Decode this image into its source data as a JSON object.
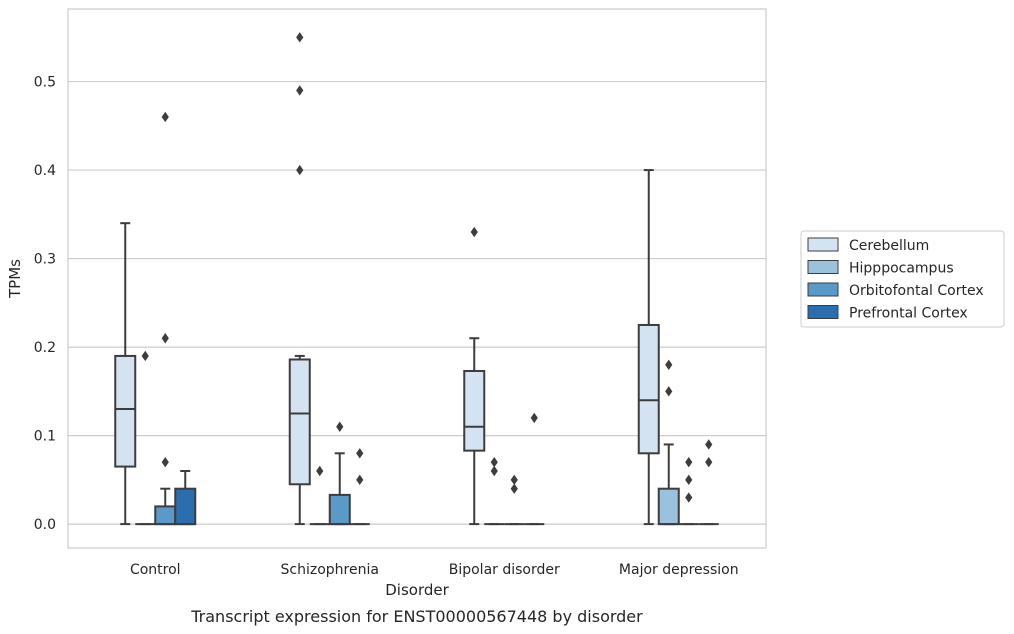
{
  "caption": "Transcript expression for ENST00000567448 by disorder",
  "chart_data": {
    "type": "boxplot",
    "xlabel": "Disorder",
    "ylabel": "TPMs",
    "ylim": [
      -0.027,
      0.582
    ],
    "yticks": [
      0.0,
      0.1,
      0.2,
      0.3,
      0.4,
      0.5
    ],
    "ytick_labels": [
      "0.0",
      "0.1",
      "0.2",
      "0.3",
      "0.4",
      "0.5"
    ],
    "grid": "horizontal",
    "legend_position": "right",
    "categories": [
      "Control",
      "Schizophrenia",
      "Bipolar disorder",
      "Major depression"
    ],
    "series": [
      {
        "name": "Cerebellum",
        "color": "#d4e3f2",
        "boxes": [
          {
            "q1": 0.065,
            "median": 0.13,
            "q3": 0.19,
            "whisker_low": 0.0,
            "whisker_high": 0.34,
            "outliers": []
          },
          {
            "q1": 0.045,
            "median": 0.125,
            "q3": 0.186,
            "whisker_low": 0.0,
            "whisker_high": 0.19,
            "outliers": [
              0.55,
              0.49,
              0.4
            ]
          },
          {
            "q1": 0.083,
            "median": 0.11,
            "q3": 0.173,
            "whisker_low": 0.0,
            "whisker_high": 0.21,
            "outliers": [
              0.33
            ]
          },
          {
            "q1": 0.08,
            "median": 0.14,
            "q3": 0.225,
            "whisker_low": 0.0,
            "whisker_high": 0.4,
            "outliers": []
          }
        ]
      },
      {
        "name": "Hipppocampus",
        "color": "#9ac2dd",
        "boxes": [
          {
            "q1": 0.0,
            "median": 0.0,
            "q3": 0.0,
            "whisker_low": 0.0,
            "whisker_high": 0.0,
            "outliers": [
              0.19
            ]
          },
          {
            "q1": 0.0,
            "median": 0.0,
            "q3": 0.0,
            "whisker_low": 0.0,
            "whisker_high": 0.0,
            "outliers": [
              0.06
            ]
          },
          {
            "q1": 0.0,
            "median": 0.0,
            "q3": 0.0,
            "whisker_low": 0.0,
            "whisker_high": 0.0,
            "outliers": [
              0.07,
              0.06
            ]
          },
          {
            "q1": 0.0,
            "median": 0.0,
            "q3": 0.04,
            "whisker_low": 0.0,
            "whisker_high": 0.09,
            "outliers": [
              0.18,
              0.15
            ]
          }
        ]
      },
      {
        "name": "Orbitofontal Cortex",
        "color": "#5a9ac8",
        "boxes": [
          {
            "q1": 0.0,
            "median": 0.0,
            "q3": 0.02,
            "whisker_low": 0.0,
            "whisker_high": 0.04,
            "outliers": [
              0.46,
              0.21,
              0.07
            ]
          },
          {
            "q1": 0.0,
            "median": 0.0,
            "q3": 0.033,
            "whisker_low": 0.0,
            "whisker_high": 0.08,
            "outliers": [
              0.11
            ]
          },
          {
            "q1": 0.0,
            "median": 0.0,
            "q3": 0.0,
            "whisker_low": 0.0,
            "whisker_high": 0.0,
            "outliers": [
              0.05,
              0.04
            ]
          },
          {
            "q1": 0.0,
            "median": 0.0,
            "q3": 0.0,
            "whisker_low": 0.0,
            "whisker_high": 0.0,
            "outliers": [
              0.07,
              0.05,
              0.03
            ]
          }
        ]
      },
      {
        "name": "Prefrontal Cortex",
        "color": "#2a6eaf",
        "boxes": [
          {
            "q1": 0.0,
            "median": 0.0,
            "q3": 0.04,
            "whisker_low": 0.0,
            "whisker_high": 0.06,
            "outliers": []
          },
          {
            "q1": 0.0,
            "median": 0.0,
            "q3": 0.0,
            "whisker_low": 0.0,
            "whisker_high": 0.0,
            "outliers": [
              0.08,
              0.05
            ]
          },
          {
            "q1": 0.0,
            "median": 0.0,
            "q3": 0.0,
            "whisker_low": 0.0,
            "whisker_high": 0.0,
            "outliers": [
              0.12
            ]
          },
          {
            "q1": 0.0,
            "median": 0.0,
            "q3": 0.0,
            "whisker_low": 0.0,
            "whisker_high": 0.0,
            "outliers": [
              0.09,
              0.07
            ]
          }
        ]
      }
    ]
  }
}
